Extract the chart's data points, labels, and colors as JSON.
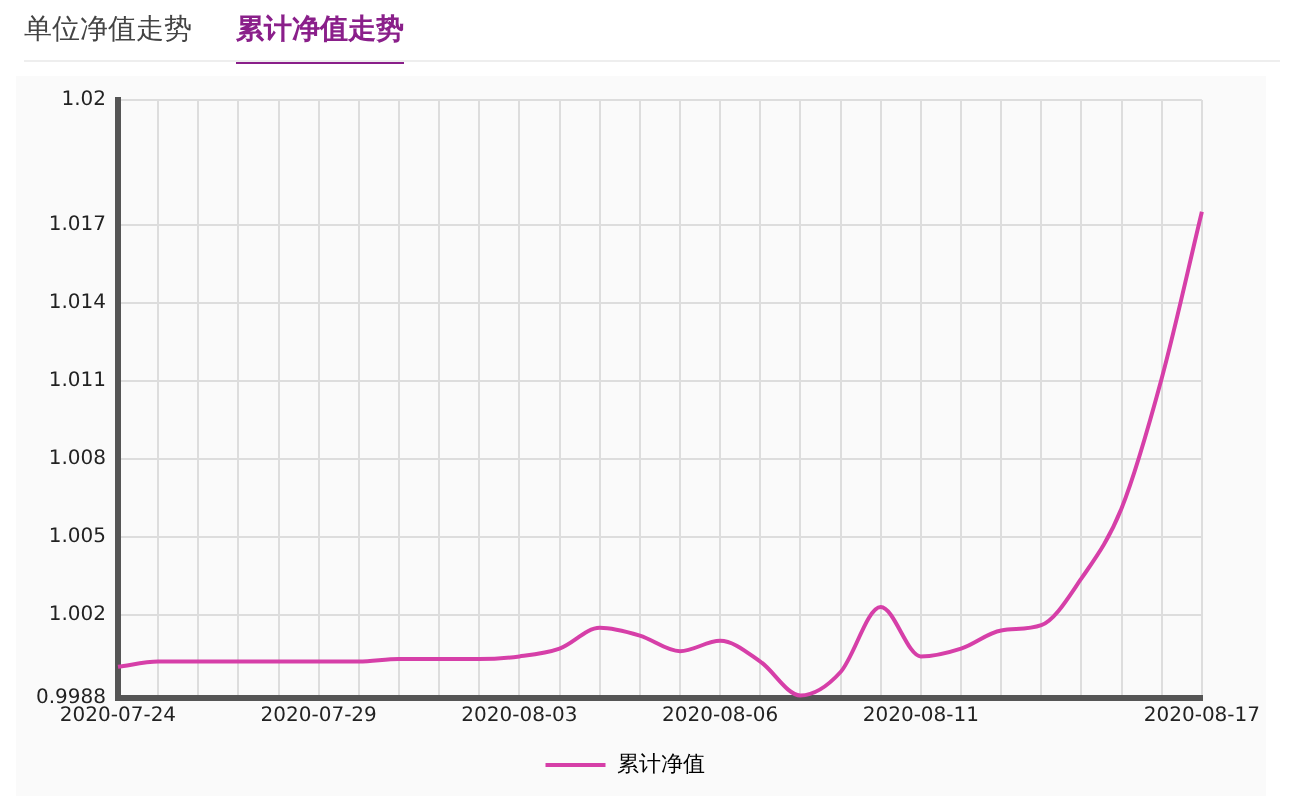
{
  "chart_data": {
    "type": "line",
    "title": "累计净值走势",
    "annotations": [
      "单位净值走势"
    ],
    "categories": [
      "2020-07-24",
      null,
      null,
      null,
      null,
      "2020-07-29",
      null,
      null,
      null,
      null,
      "2020-08-03",
      null,
      null,
      null,
      null,
      "2020-08-06",
      null,
      null,
      null,
      null,
      "2020-08-11",
      null,
      null,
      null,
      null,
      null,
      null,
      "2020-08-17"
    ],
    "series": [
      {
        "name": "累计净值",
        "color": "#d63fa8",
        "values": [
          1.0,
          1.0002,
          1.0002,
          1.0002,
          1.0002,
          1.0002,
          1.0002,
          1.0003,
          1.0003,
          1.0003,
          1.0004,
          1.0007,
          1.0015,
          1.0012,
          1.0006,
          1.001,
          1.0002,
          0.9989,
          0.9998,
          1.0023,
          1.0004,
          1.0007,
          1.0014,
          1.0016,
          1.0034,
          1.0061,
          1.0111,
          1.0175
        ]
      }
    ],
    "ylim": [
      0.9988,
      1.0218
    ],
    "yticks": [
      0.9988,
      1.002,
      1.005,
      1.008,
      1.011,
      1.014,
      1.017,
      {
        "value": 1.0218,
        "label": "1.02"
      }
    ],
    "grid": true,
    "legend": "bottom",
    "marker": "none",
    "line_style": "solid"
  }
}
